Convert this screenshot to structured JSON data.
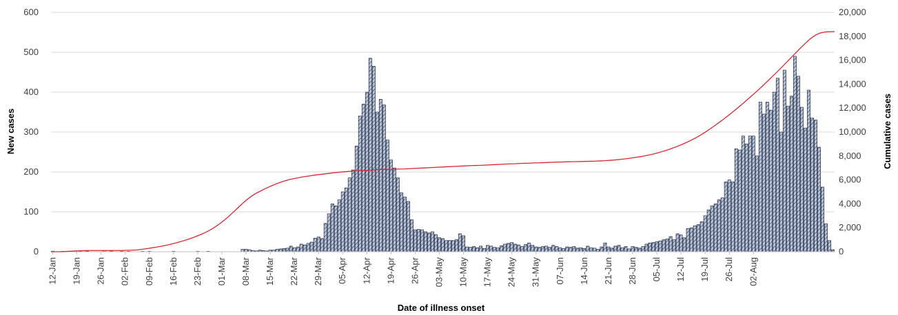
{
  "chart_data": {
    "type": "bar",
    "xlabel": "Date of illness onset",
    "ylabel": "New cases",
    "y2label": "Cumulative cases",
    "ylim": [
      0,
      600
    ],
    "y2lim": [
      0,
      20000
    ],
    "y_ticks": [
      "0",
      "100",
      "200",
      "300",
      "400",
      "500",
      "600"
    ],
    "y2_ticks": [
      "0",
      "2,000",
      "4,000",
      "6,000",
      "8,000",
      "10,000",
      "12,000",
      "14,000",
      "16,000",
      "18,000",
      "20,000"
    ],
    "x_ticks": [
      "12-Jan",
      "19-Jan",
      "26-Jan",
      "02-Feb",
      "09-Feb",
      "16-Feb",
      "23-Feb",
      "01-Mar",
      "08-Mar",
      "15-Mar",
      "22-Mar",
      "29-Mar",
      "05-Apr",
      "12-Apr",
      "19-Apr",
      "26-Apr",
      "03-May",
      "10-May",
      "17-May",
      "24-May",
      "31-May",
      "07-Jun",
      "14-Jun",
      "21-Jun",
      "28-Jun",
      "05-Jul",
      "12-Jul",
      "19-Jul",
      "26-Jul",
      "02-Aug"
    ],
    "grid": true,
    "legend": "none",
    "start_date": "12-Jan",
    "series": [
      {
        "kind": "bar",
        "axis": "left",
        "color": "#b8c4d6",
        "values": [
          1,
          0,
          0,
          1,
          0,
          0,
          1,
          0,
          1,
          0,
          1,
          0,
          0,
          0,
          0,
          3,
          0,
          2,
          0,
          0,
          1,
          0,
          1,
          0,
          0,
          0,
          1,
          0,
          1,
          0,
          0,
          0,
          0,
          0,
          0,
          1,
          0,
          0,
          0,
          0,
          0,
          0,
          1,
          0,
          0,
          1,
          0,
          0,
          0,
          0,
          0,
          0,
          0,
          0,
          0,
          6,
          6,
          5,
          3,
          2,
          4,
          3,
          2,
          4,
          4,
          6,
          7,
          8,
          9,
          14,
          10,
          12,
          19,
          17,
          21,
          24,
          34,
          37,
          33,
          71,
          95,
          120,
          115,
          130,
          150,
          160,
          185,
          205,
          265,
          340,
          370,
          400,
          485,
          465,
          350,
          382,
          368,
          280,
          230,
          210,
          185,
          148,
          137,
          126,
          80,
          55,
          56,
          55,
          50,
          47,
          50,
          43,
          35,
          33,
          28,
          28,
          28,
          30,
          45,
          40,
          12,
          11,
          13,
          10,
          14,
          8,
          16,
          14,
          11,
          10,
          15,
          19,
          21,
          23,
          19,
          17,
          13,
          18,
          22,
          16,
          12,
          11,
          13,
          14,
          11,
          16,
          13,
          10,
          8,
          12,
          11,
          13,
          9,
          10,
          8,
          14,
          10,
          9,
          6,
          12,
          22,
          12,
          9,
          14,
          16,
          10,
          13,
          7,
          13,
          11,
          9,
          13,
          19,
          22,
          23,
          25,
          27,
          30,
          32,
          38,
          30,
          45,
          42,
          35,
          58,
          60,
          65,
          68,
          75,
          90,
          105,
          115,
          120,
          130,
          135,
          175,
          180,
          175,
          258,
          255,
          290,
          270,
          290,
          290,
          240,
          375,
          345,
          375,
          355,
          400,
          435,
          300,
          455,
          365,
          390,
          490,
          440,
          362,
          310,
          405,
          335,
          330,
          262,
          162,
          70,
          28,
          5
        ]
      },
      {
        "kind": "line",
        "axis": "right",
        "color": "#d9262c",
        "values": [
          0,
          0,
          0,
          20,
          40,
          60,
          80,
          90,
          100,
          100,
          100,
          100,
          100,
          100,
          100,
          100,
          120,
          130,
          150,
          200,
          250,
          320,
          380,
          450,
          530,
          620,
          720,
          830,
          950,
          1080,
          1220,
          1380,
          1550,
          1750,
          1980,
          2250,
          2550,
          2880,
          3250,
          3620,
          4000,
          4350,
          4650,
          4900,
          5100,
          5300,
          5480,
          5650,
          5800,
          5930,
          6040,
          6120,
          6200,
          6270,
          6330,
          6390,
          6440,
          6490,
          6540,
          6590,
          6630,
          6670,
          6700,
          6730,
          6760,
          6780,
          6800,
          6830,
          6850,
          6870,
          6880,
          6890,
          6900,
          6910,
          6920,
          6940,
          6960,
          6980,
          7000,
          7020,
          7040,
          7060,
          7080,
          7100,
          7120,
          7140,
          7160,
          7180,
          7200,
          7210,
          7220,
          7240,
          7260,
          7280,
          7300,
          7320,
          7340,
          7350,
          7370,
          7390,
          7400,
          7420,
          7430,
          7440,
          7460,
          7480,
          7490,
          7500,
          7510,
          7520,
          7530,
          7540,
          7550,
          7560,
          7570,
          7590,
          7610,
          7640,
          7670,
          7710,
          7750,
          7800,
          7860,
          7920,
          7990,
          8070,
          8160,
          8260,
          8380,
          8500,
          8640,
          8790,
          8950,
          9130,
          9320,
          9530,
          9760,
          10010,
          10280,
          10560,
          10850,
          11150,
          11460,
          11780,
          12110,
          12450,
          12800,
          13150,
          13510,
          13880,
          14260,
          14650,
          15040,
          15440,
          15850,
          16260,
          16670,
          17080,
          17460,
          17820,
          18100,
          18280,
          18360,
          18380,
          18390
        ]
      }
    ]
  }
}
